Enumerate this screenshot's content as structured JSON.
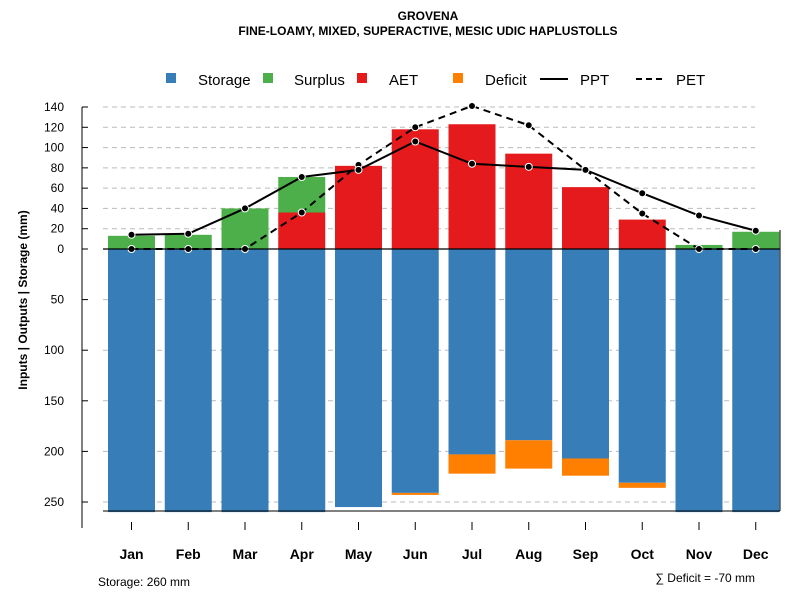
{
  "chart_data": {
    "type": "bar",
    "title": "GROVENA",
    "subtitle": "FINE-LOAMY, MIXED, SUPERACTIVE, MESIC UDIC HAPLUSTOLLS",
    "ylabel": "Inputs | Outputs | Storage    (mm)",
    "ylim": [
      -260,
      140
    ],
    "upper_ticks": [
      "140",
      "120",
      "100",
      "80",
      "60",
      "40",
      "20",
      "0"
    ],
    "lower_ticks": [
      "50",
      "100",
      "150",
      "200",
      "250"
    ],
    "categories": [
      "Jan",
      "Feb",
      "Mar",
      "Apr",
      "May",
      "Jun",
      "Jul",
      "Aug",
      "Sep",
      "Oct",
      "Nov",
      "Dec"
    ],
    "legend": {
      "storage": "Storage",
      "surplus": "Surplus",
      "aet": "AET",
      "deficit": "Deficit",
      "ppt": "PPT",
      "pet": "PET"
    },
    "colors": {
      "storage": "#377EB8",
      "surplus": "#4DAF4A",
      "aet": "#E41A1C",
      "deficit": "#FF7F00",
      "line": "#000000",
      "grid": "#bbbbbb"
    },
    "series": {
      "storage": [
        260,
        260,
        260,
        260,
        255,
        241,
        203,
        189,
        207,
        231,
        260,
        260
      ],
      "deficit": [
        0,
        0,
        0,
        0,
        0,
        2,
        19,
        28,
        17,
        5,
        0,
        0
      ],
      "aet": [
        0,
        0,
        0,
        36,
        82,
        118,
        123,
        94,
        61,
        29,
        0,
        0
      ],
      "surplus": [
        13,
        14,
        40,
        35,
        0,
        0,
        0,
        0,
        0,
        0,
        4,
        17
      ],
      "ppt": [
        14,
        15,
        40,
        71,
        78,
        106,
        84,
        81,
        78,
        55,
        33,
        18
      ],
      "pet": [
        0,
        0,
        0,
        36,
        83,
        120,
        141,
        122,
        78,
        35,
        0,
        0
      ]
    },
    "notes": {
      "storage": "Storage: 260 mm",
      "deficit": "∑ Deficit = -70 mm"
    }
  }
}
